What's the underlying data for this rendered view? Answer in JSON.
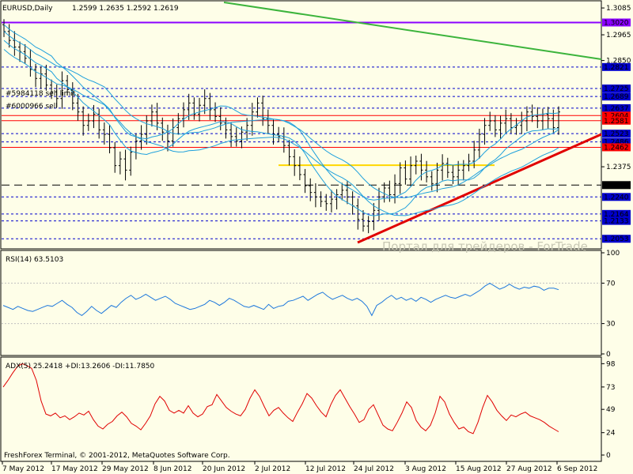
{
  "chart_data": [
    {
      "panel": "price",
      "type": "candlestick",
      "title": "EURUSD,Daily",
      "ohlc": "1.2599 1.2635 1.2592 1.2619",
      "ylim": [
        1.2015,
        1.311
      ],
      "yticks": [
        "1.3085",
        "1.2965",
        "1.2850",
        "1.2375"
      ],
      "price_labels": [
        {
          "text": "1.3020",
          "value": 1.302,
          "bg": "#8b00ff"
        },
        {
          "text": "1.2821",
          "value": 1.2821,
          "bg": "#0000cc"
        },
        {
          "text": "1.2725",
          "value": 1.2725,
          "bg": "#0000cc"
        },
        {
          "text": "1.2689",
          "value": 1.2689,
          "bg": "#0000cc"
        },
        {
          "text": "1.2637",
          "value": 1.2637,
          "bg": "#0000cc"
        },
        {
          "text": "1.2604",
          "value": 1.2604,
          "bg": "#ff0000"
        },
        {
          "text": "1.2581",
          "value": 1.2581,
          "bg": "#ff0000"
        },
        {
          "text": "1.2523",
          "value": 1.2523,
          "bg": "#0000cc"
        },
        {
          "text": "1.2486",
          "value": 1.2486,
          "bg": "#0000cc"
        },
        {
          "text": "1.2462",
          "value": 1.2462,
          "bg": "#ff0000"
        },
        {
          "text": "1.2293",
          "value": 1.2293,
          "bg": "#000000"
        },
        {
          "text": "1.2240",
          "value": 1.224,
          "bg": "#0000cc"
        },
        {
          "text": "1.2164",
          "value": 1.2164,
          "bg": "#0000cc"
        },
        {
          "text": "1.2133",
          "value": 1.2133,
          "bg": "#0000cc"
        },
        {
          "text": "1.2053",
          "value": 1.2053,
          "bg": "#0000cc"
        }
      ],
      "order_labels": [
        "#5984118 sell limit",
        "#6000966 sell"
      ],
      "watermark": "Портал для трейдеров - ForTrade"
    },
    {
      "panel": "rsi",
      "type": "line",
      "title": "RSI(14) 63.5103",
      "ylim": [
        0,
        100
      ],
      "yticks": [
        "100",
        "70",
        "30",
        "0"
      ],
      "values": [
        48,
        46,
        44,
        47,
        45,
        43,
        42,
        44,
        46,
        48,
        47,
        50,
        53,
        49,
        46,
        41,
        38,
        42,
        47,
        43,
        40,
        44,
        48,
        46,
        51,
        55,
        58,
        54,
        56,
        59,
        56,
        53,
        55,
        57,
        54,
        50,
        48,
        46,
        44,
        45,
        47,
        49,
        53,
        51,
        48,
        51,
        55,
        53,
        50,
        47,
        46,
        48,
        46,
        44,
        49,
        45,
        47,
        48,
        52,
        53,
        55,
        57,
        53,
        56,
        59,
        61,
        57,
        54,
        56,
        58,
        55,
        53,
        55,
        52,
        47,
        38,
        48,
        51,
        55,
        58,
        54,
        56,
        53,
        55,
        52,
        56,
        54,
        51,
        54,
        56,
        58,
        56,
        55,
        57,
        59,
        57,
        60,
        63,
        67,
        70,
        67,
        64,
        66,
        69,
        66,
        64,
        66,
        65,
        67,
        66,
        63,
        65,
        65,
        63.5
      ]
    },
    {
      "panel": "adx",
      "type": "line",
      "title": "ADX(5) 25.2418 +DI:13.2606 -DI:11.7850",
      "ylim": [
        0,
        100
      ],
      "yticks": [
        "98",
        "73",
        "49",
        "24",
        "0"
      ],
      "values": [
        73,
        80,
        88,
        95,
        98,
        96,
        93,
        80,
        58,
        44,
        42,
        45,
        40,
        42,
        38,
        41,
        45,
        43,
        47,
        38,
        31,
        28,
        33,
        36,
        42,
        46,
        41,
        34,
        31,
        27,
        34,
        42,
        55,
        63,
        58,
        48,
        45,
        48,
        45,
        53,
        45,
        41,
        44,
        52,
        54,
        65,
        58,
        51,
        47,
        44,
        42,
        49,
        61,
        70,
        63,
        52,
        42,
        48,
        51,
        45,
        40,
        36,
        46,
        55,
        66,
        61,
        53,
        46,
        41,
        54,
        64,
        70,
        61,
        52,
        44,
        35,
        38,
        49,
        54,
        43,
        32,
        28,
        26,
        35,
        45,
        57,
        51,
        37,
        30,
        26,
        32,
        45,
        63,
        57,
        44,
        35,
        28,
        30,
        25,
        23,
        35,
        51,
        64,
        57,
        48,
        42,
        37,
        43,
        41,
        44,
        46,
        42,
        40,
        38,
        35,
        31,
        28,
        25
      ]
    },
    {
      "panel": "x-axis",
      "type": "axis",
      "xticks": [
        "7 May 2012",
        "17 May 2012",
        "29 May 2012",
        "8 Jun 2012",
        "20 Jun 2012",
        "2 Jul 2012",
        "12 Jul 2012",
        "24 Jul 2012",
        "3 Aug 2012",
        "15 Aug 2012",
        "27 Aug 2012",
        "6 Sep 2012"
      ],
      "copyright": "FreshForex Terminal, © 2001-2012, MetaQuotes Software Corp."
    }
  ],
  "colors": {
    "background": "#fefee8",
    "candle": "#000000",
    "ma": "#1ea0dc",
    "rsi": "#1e78dc",
    "adx": "#e00000",
    "trend_up": "#e00000",
    "trend_down": "#3cb43c",
    "level_purple": "#8b00ff",
    "level_blue": "#0000cc",
    "level_red": "#ff0000",
    "level_yellow": "#ffd700"
  }
}
